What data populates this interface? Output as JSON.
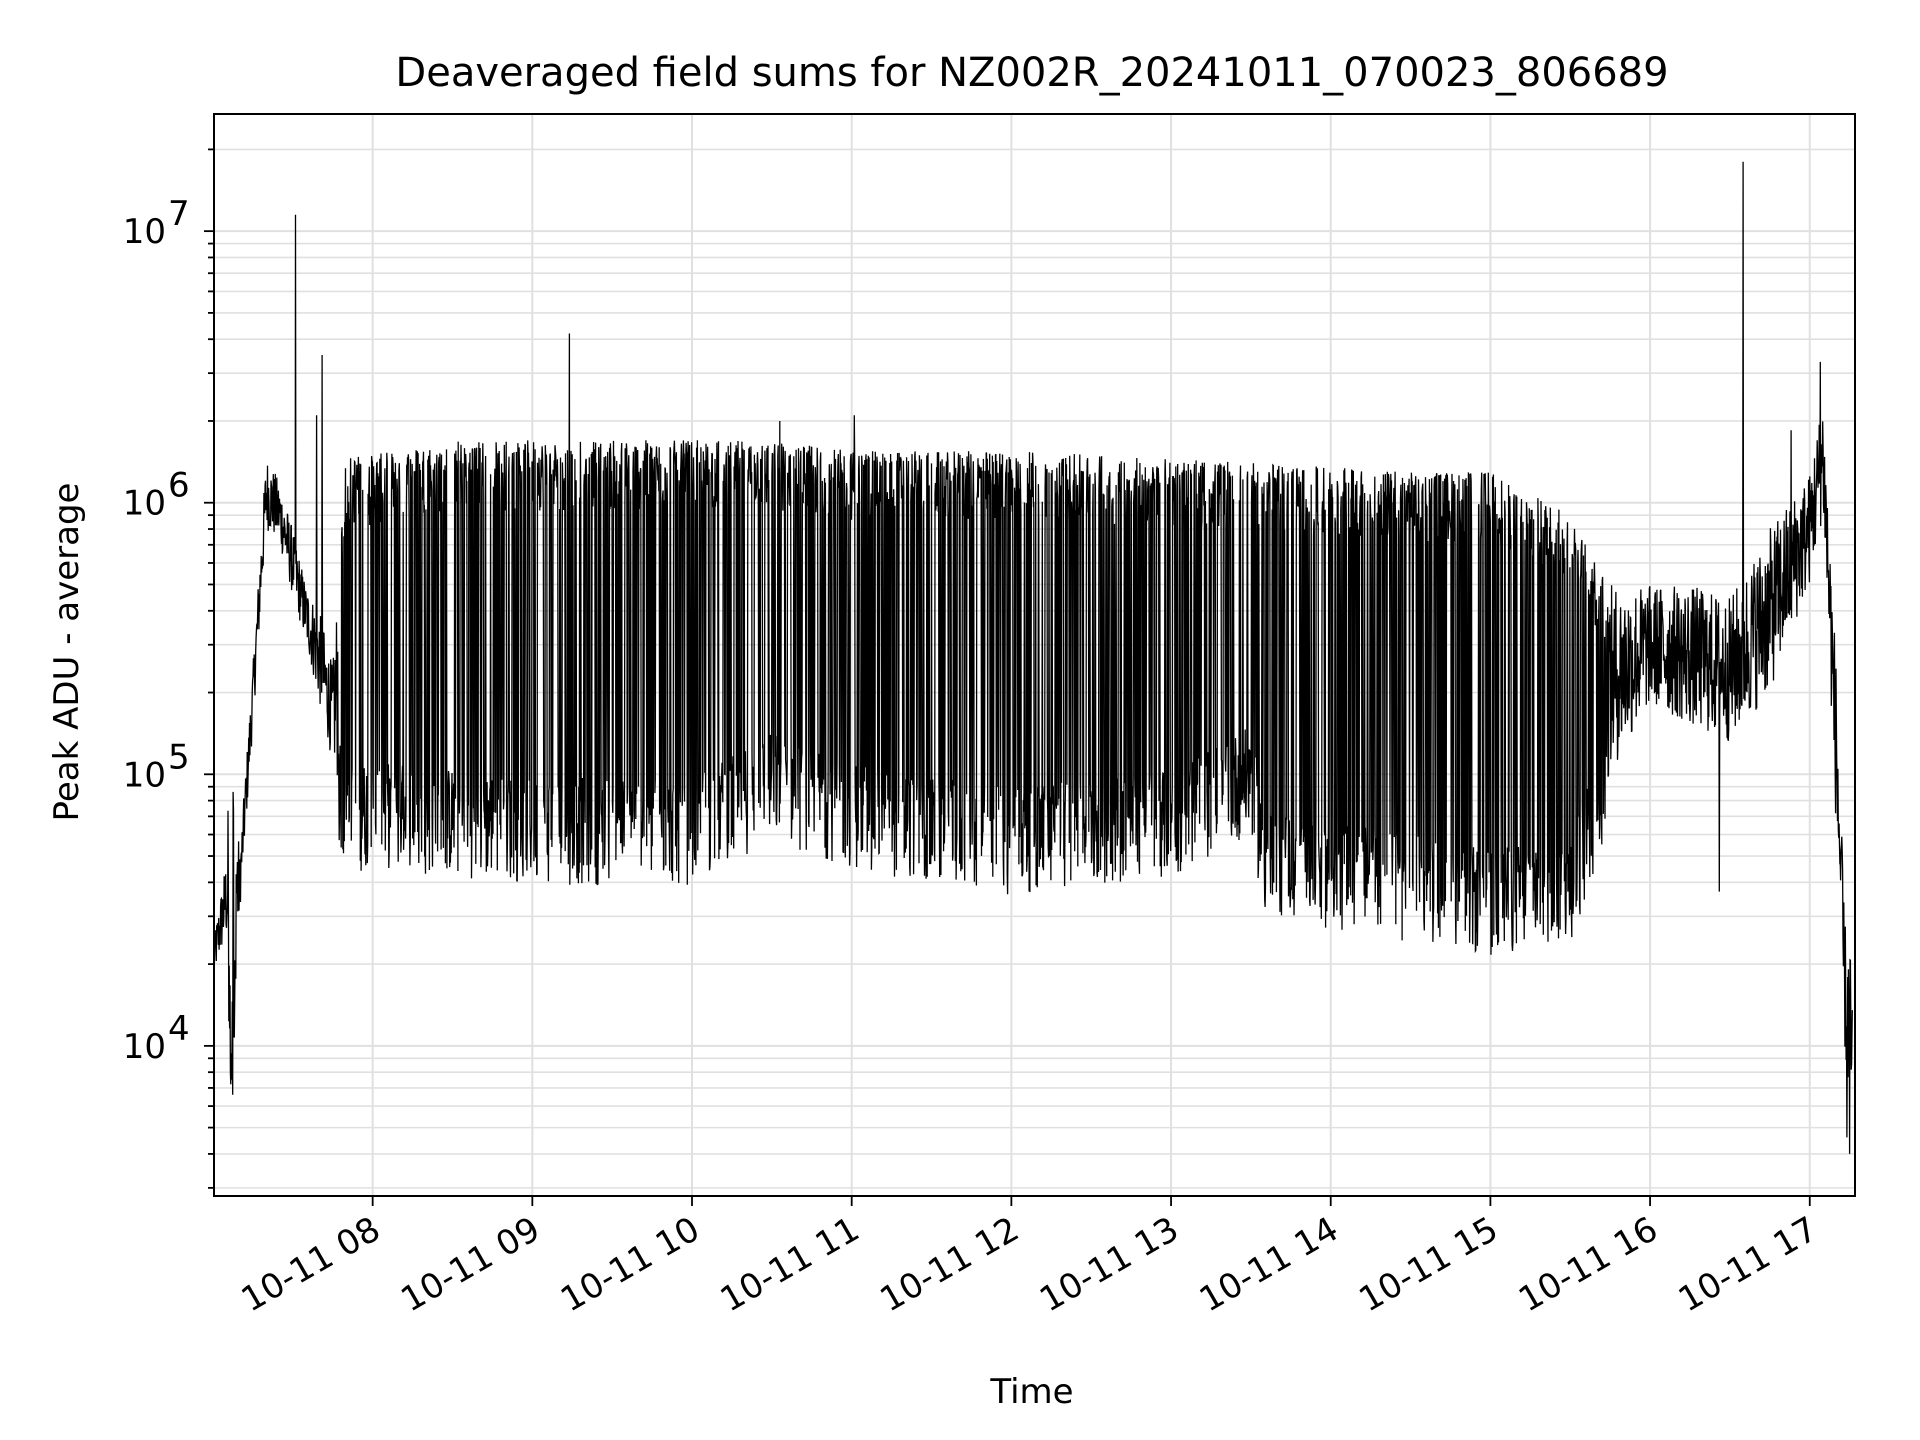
{
  "chart_data": {
    "type": "line",
    "title": "Deaveraged field sums for NZ002R_20241011_070023_806689",
    "xlabel": "Time",
    "ylabel": "Peak ADU - average",
    "yscale": "log",
    "xlim": [
      "2024-10-11 07:00:23",
      "2024-10-11 17:17:00"
    ],
    "ylim": [
      2800,
      27000000
    ],
    "x_ticks": [
      "2024-10-11 08:00",
      "2024-10-11 09:00",
      "2024-10-11 10:00",
      "2024-10-11 11:00",
      "2024-10-11 12:00",
      "2024-10-11 13:00",
      "2024-10-11 14:00",
      "2024-10-11 15:00",
      "2024-10-11 16:00",
      "2024-10-11 17:00"
    ],
    "x_tick_labels": [
      "10-11 08",
      "10-11 09",
      "10-11 10",
      "10-11 11",
      "10-11 12",
      "10-11 13",
      "10-11 14",
      "10-11 15",
      "10-11 16",
      "10-11 17"
    ],
    "y_ticks": [
      10000,
      100000,
      1000000,
      10000000
    ],
    "y_tick_labels": [
      {
        "base": "10",
        "exp": "4"
      },
      {
        "base": "10",
        "exp": "5"
      },
      {
        "base": "10",
        "exp": "6"
      },
      {
        "base": "10",
        "exp": "7"
      }
    ],
    "grid": true,
    "line_color": "#000000",
    "grid_color": "#e0e0e0",
    "envelope": {
      "description_points": "time, baseline (lower typical), upper (typical high excursion)",
      "points": [
        [
          "2024-10-11 07:00:23",
          18000,
          25000
        ],
        [
          "2024-10-11 07:05",
          25000,
          50000
        ],
        [
          "2024-10-11 07:07",
          9000,
          180000
        ],
        [
          "2024-10-11 07:10",
          30000,
          50000
        ],
        [
          "2024-10-11 07:15",
          150000,
          250000
        ],
        [
          "2024-10-11 07:20",
          800000,
          1500000
        ],
        [
          "2024-10-11 07:25",
          700000,
          1200000
        ],
        [
          "2024-10-11 07:30",
          450000,
          800000
        ],
        [
          "2024-10-11 07:35",
          300000,
          500000
        ],
        [
          "2024-10-11 07:40",
          180000,
          400000
        ],
        [
          "2024-10-11 07:45",
          110000,
          250000
        ],
        [
          "2024-10-11 07:50",
          70000,
          1500000
        ],
        [
          "2024-10-11 08:00",
          75000,
          1500000
        ],
        [
          "2024-10-11 08:30",
          70000,
          1700000
        ],
        [
          "2024-10-11 09:00",
          65000,
          1700000
        ],
        [
          "2024-10-11 09:30",
          65000,
          1700000
        ],
        [
          "2024-10-11 10:00",
          65000,
          1700000
        ],
        [
          "2024-10-11 10:30",
          95000,
          1700000
        ],
        [
          "2024-10-11 11:00",
          75000,
          1550000
        ],
        [
          "2024-10-11 11:30",
          65000,
          1550000
        ],
        [
          "2024-10-11 12:00",
          60000,
          1550000
        ],
        [
          "2024-10-11 12:30",
          65000,
          1500000
        ],
        [
          "2024-10-11 13:00",
          70000,
          1450000
        ],
        [
          "2024-10-11 13:30",
          100000,
          1400000
        ],
        [
          "2024-10-11 13:35",
          50000,
          1400000
        ],
        [
          "2024-10-11 14:00",
          45000,
          1350000
        ],
        [
          "2024-10-11 14:30",
          40000,
          1300000
        ],
        [
          "2024-10-11 15:00",
          35000,
          1300000
        ],
        [
          "2024-10-11 15:30",
          40000,
          900000
        ],
        [
          "2024-10-11 15:45",
          100000,
          500000
        ],
        [
          "2024-10-11 16:00",
          180000,
          500000
        ],
        [
          "2024-10-11 16:15",
          150000,
          500000
        ],
        [
          "2024-10-11 16:30",
          130000,
          450000
        ],
        [
          "2024-10-11 16:45",
          200000,
          800000
        ],
        [
          "2024-10-11 17:00",
          500000,
          1300000
        ],
        [
          "2024-10-11 17:05",
          900000,
          2500000
        ],
        [
          "2024-10-11 17:10",
          60000,
          250000
        ],
        [
          "2024-10-11 17:13",
          10000,
          30000
        ],
        [
          "2024-10-11 17:16",
          4000,
          20000
        ]
      ]
    },
    "spikes": [
      {
        "x": "2024-10-11 07:31",
        "y": 11500000
      },
      {
        "x": "2024-10-11 07:41",
        "y": 3500000
      },
      {
        "x": "2024-10-11 07:39",
        "y": 2100000
      },
      {
        "x": "2024-10-11 09:14",
        "y": 4200000
      },
      {
        "x": "2024-10-11 10:33",
        "y": 2000000
      },
      {
        "x": "2024-10-11 11:01",
        "y": 2100000
      },
      {
        "x": "2024-10-11 16:35",
        "y": 18000000
      },
      {
        "x": "2024-10-11 17:04",
        "y": 3300000
      },
      {
        "x": "2024-10-11 16:53",
        "y": 1850000
      }
    ],
    "dips": [
      {
        "x": "2024-10-11 07:07",
        "y": 7500
      },
      {
        "x": "2024-10-11 16:26",
        "y": 37000
      },
      {
        "x": "2024-10-11 17:15",
        "y": 4000
      },
      {
        "x": "2024-10-11 17:14",
        "y": 4600
      }
    ]
  }
}
